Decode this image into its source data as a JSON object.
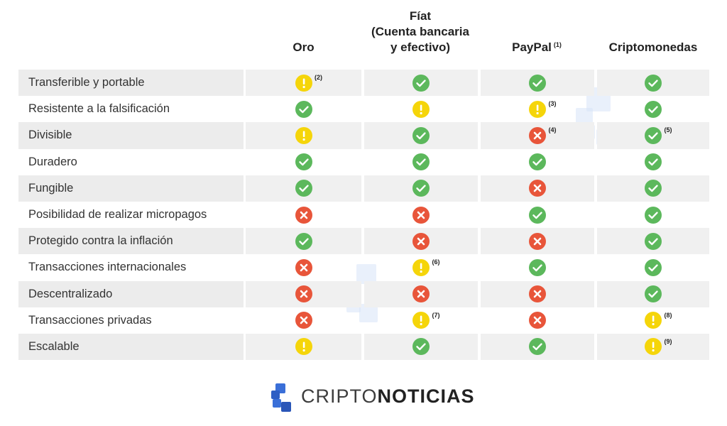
{
  "columns": [
    {
      "label": "Oro",
      "note": ""
    },
    {
      "label": "Fíat\n(Cuenta bancaria\ny efectivo)",
      "note": ""
    },
    {
      "label": "PayPal",
      "note": "(1)"
    },
    {
      "label": "Criptomonedas",
      "note": ""
    }
  ],
  "colors": {
    "yes": "#5cb85c",
    "warn": "#f5d50a",
    "no": "#e8553a",
    "shade": "#f0f0f0",
    "logo_blue": "#3a6fd8"
  },
  "rows": [
    {
      "feature": "Transferible y portable",
      "cells": [
        {
          "s": "warn",
          "note": "(2)"
        },
        {
          "s": "yes",
          "note": ""
        },
        {
          "s": "yes",
          "note": ""
        },
        {
          "s": "yes",
          "note": ""
        }
      ]
    },
    {
      "feature": "Resistente a la falsificación",
      "cells": [
        {
          "s": "yes",
          "note": ""
        },
        {
          "s": "warn",
          "note": ""
        },
        {
          "s": "warn",
          "note": "(3)"
        },
        {
          "s": "yes",
          "note": ""
        }
      ]
    },
    {
      "feature": "Divisible",
      "cells": [
        {
          "s": "warn",
          "note": ""
        },
        {
          "s": "yes",
          "note": ""
        },
        {
          "s": "no",
          "note": "(4)"
        },
        {
          "s": "yes",
          "note": "(5)"
        }
      ]
    },
    {
      "feature": "Duradero",
      "cells": [
        {
          "s": "yes",
          "note": ""
        },
        {
          "s": "yes",
          "note": ""
        },
        {
          "s": "yes",
          "note": ""
        },
        {
          "s": "yes",
          "note": ""
        }
      ]
    },
    {
      "feature": "Fungible",
      "cells": [
        {
          "s": "yes",
          "note": ""
        },
        {
          "s": "yes",
          "note": ""
        },
        {
          "s": "no",
          "note": ""
        },
        {
          "s": "yes",
          "note": ""
        }
      ]
    },
    {
      "feature": "Posibilidad de realizar micropagos",
      "cells": [
        {
          "s": "no",
          "note": ""
        },
        {
          "s": "no",
          "note": ""
        },
        {
          "s": "yes",
          "note": ""
        },
        {
          "s": "yes",
          "note": ""
        }
      ]
    },
    {
      "feature": "Protegido contra la inflación",
      "cells": [
        {
          "s": "yes",
          "note": ""
        },
        {
          "s": "no",
          "note": ""
        },
        {
          "s": "no",
          "note": ""
        },
        {
          "s": "yes",
          "note": ""
        }
      ]
    },
    {
      "feature": "Transacciones internacionales",
      "cells": [
        {
          "s": "no",
          "note": ""
        },
        {
          "s": "warn",
          "note": "(6)"
        },
        {
          "s": "yes",
          "note": ""
        },
        {
          "s": "yes",
          "note": ""
        }
      ]
    },
    {
      "feature": "Descentralizado",
      "cells": [
        {
          "s": "no",
          "note": ""
        },
        {
          "s": "no",
          "note": ""
        },
        {
          "s": "no",
          "note": ""
        },
        {
          "s": "yes",
          "note": ""
        }
      ]
    },
    {
      "feature": "Transacciones privadas",
      "cells": [
        {
          "s": "no",
          "note": ""
        },
        {
          "s": "warn",
          "note": "(7)"
        },
        {
          "s": "no",
          "note": ""
        },
        {
          "s": "warn",
          "note": "(8)"
        }
      ]
    },
    {
      "feature": "Escalable",
      "cells": [
        {
          "s": "warn",
          "note": ""
        },
        {
          "s": "yes",
          "note": ""
        },
        {
          "s": "yes",
          "note": ""
        },
        {
          "s": "warn",
          "note": "(9)"
        }
      ]
    }
  ],
  "logo": {
    "part1": "CRIPTO",
    "part2": "NOTICIAS"
  }
}
